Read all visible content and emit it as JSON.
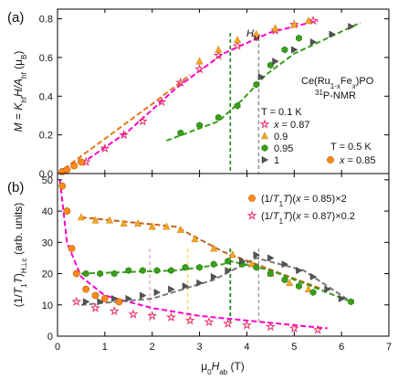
{
  "chart_data": [
    {
      "panel": "a",
      "type": "scatter",
      "panel_label": "(a)",
      "ylabel": "M = K_hf H/A_hf (μB)",
      "ylabel_parts": [
        "M",
        " = ",
        "K",
        "hf",
        "H/A",
        "hf",
        " (μ",
        "B",
        ")"
      ],
      "ylim": [
        0,
        0.85
      ],
      "yticks": [
        "0.0",
        "0.2",
        "0.4",
        "0.6",
        "0.8"
      ],
      "annotations": {
        "HM": [
          "H",
          "M"
        ],
        "compound_parts": [
          "Ce(Ru",
          "1-x",
          "Fe",
          "x",
          ")PO"
        ],
        "nmr_parts": [
          "31",
          "P-NMR"
        ],
        "T01": "T = 0.1 K",
        "T05": "T = 0.5 K"
      },
      "series": [
        {
          "name": "x = 0.87",
          "T": "0.1 K",
          "color": "#e8336b",
          "marker": "star-open",
          "x": [
            0.6,
            1.0,
            1.4,
            1.8,
            2.2,
            2.6,
            3.0,
            3.4,
            3.8,
            4.2,
            4.6,
            5.0,
            5.4
          ],
          "y": [
            0.06,
            0.13,
            0.2,
            0.27,
            0.37,
            0.47,
            0.54,
            0.61,
            0.66,
            0.71,
            0.74,
            0.77,
            0.79
          ]
        },
        {
          "name": "0.9",
          "T": "0.1 K",
          "color": "#f5a623",
          "marker": "triangle",
          "x": [
            3.0,
            3.4,
            3.8,
            4.2,
            4.6,
            5.0,
            5.3
          ],
          "y": [
            0.58,
            0.64,
            0.69,
            0.72,
            0.75,
            0.77,
            0.79
          ]
        },
        {
          "name": "0.95",
          "T": "0.1 K",
          "color": "#3a9e1a",
          "marker": "hexagon",
          "x": [
            2.6,
            3.0,
            3.4,
            3.8,
            4.2,
            4.5,
            4.8,
            5.1
          ],
          "y": [
            0.21,
            0.25,
            0.29,
            0.35,
            0.46,
            0.56,
            0.64,
            0.7
          ]
        },
        {
          "name": "1",
          "T": "0.1 K",
          "color": "#555555",
          "marker": "triangle-right",
          "x": [
            4.3,
            4.6,
            5.0,
            5.4,
            5.8,
            6.2
          ],
          "y": [
            0.5,
            0.58,
            0.64,
            0.68,
            0.72,
            0.76
          ]
        },
        {
          "name": "x = 0.85",
          "T": "0.5 K",
          "color": "#ff8a1a",
          "marker": "circle",
          "x": [
            0.1,
            0.2,
            0.35,
            0.5
          ],
          "y": [
            0.01,
            0.02,
            0.04,
            0.06
          ]
        }
      ],
      "fits": [
        {
          "color": "#ff00cc",
          "x": [
            0.5,
            1.5,
            2.5,
            3.5,
            4.5,
            5.5
          ],
          "y": [
            0.05,
            0.22,
            0.44,
            0.62,
            0.73,
            0.79
          ]
        },
        {
          "color": "#e8761a",
          "x": [
            0.0,
            1.0,
            2.0,
            2.8
          ],
          "y": [
            0.0,
            0.18,
            0.36,
            0.51
          ]
        },
        {
          "color": "#3a9e1a",
          "x": [
            2.3,
            3.4,
            3.9,
            4.4,
            5.0,
            6.4
          ],
          "y": [
            0.17,
            0.27,
            0.38,
            0.51,
            0.62,
            0.78
          ]
        }
      ]
    },
    {
      "panel": "b",
      "type": "scatter",
      "panel_label": "(b)",
      "xlabel": "μ0Hab (T)",
      "xlabel_parts": [
        "μ",
        "0",
        "H",
        "ab",
        " (T)"
      ],
      "ylabel": "(1/T1T)H⊥c (arb. units)",
      "ylabel_parts": [
        "(1/",
        "T",
        "1",
        "T",
        ")",
        "H⊥c",
        " (arb. units)"
      ],
      "xlim": [
        0,
        7
      ],
      "ylim": [
        0,
        52
      ],
      "xticks": [
        "0",
        "1",
        "2",
        "3",
        "4",
        "5",
        "6",
        "7"
      ],
      "yticks": [
        "0",
        "10",
        "20",
        "30",
        "40",
        "50"
      ],
      "legend": [
        {
          "parts": [
            "(1/",
            "T",
            "1",
            "T",
            ")(",
            "x",
            " = 0.85)×2"
          ]
        },
        {
          "parts": [
            "(1/",
            "T",
            "1",
            "T",
            ")(",
            "x",
            " = 0.87)×0.2"
          ]
        }
      ],
      "vertical_markers": [
        {
          "x": 1.95,
          "color": "#f2a0c8",
          "style": "dashed"
        },
        {
          "x": 2.75,
          "color": "#ffd34d",
          "style": "dashed"
        },
        {
          "x": 3.65,
          "color": "#1a8a1a",
          "style": "dashed"
        },
        {
          "x": 4.25,
          "color": "#999999",
          "style": "dashed"
        }
      ],
      "series": [
        {
          "name": "x = 0.87",
          "scale": "0.2",
          "color": "#e8336b",
          "marker": "star-open",
          "x": [
            0.4,
            0.8,
            1.2,
            1.6,
            2.0,
            2.4,
            2.8,
            3.2,
            3.6,
            4.0,
            4.5,
            5.0,
            5.5
          ],
          "y": [
            11,
            9,
            8,
            7,
            6.5,
            6,
            5,
            4.5,
            4,
            3.5,
            3,
            2.5,
            2
          ]
        },
        {
          "name": "0.9",
          "color": "#f5a623",
          "marker": "triangle",
          "x": [
            0.5,
            0.8,
            1.1,
            1.4,
            1.7,
            2.0,
            2.3,
            2.6,
            2.9,
            3.3,
            3.7,
            4.1,
            4.5,
            4.9,
            5.3
          ],
          "y": [
            38,
            37,
            37,
            36,
            36,
            35,
            35,
            34,
            31,
            28,
            26,
            23,
            20,
            17,
            15
          ]
        },
        {
          "name": "0.95",
          "color": "#3a9e1a",
          "marker": "hexagon",
          "x": [
            0.6,
            0.9,
            1.2,
            1.5,
            1.8,
            2.1,
            2.4,
            2.7,
            3.0,
            3.3,
            3.6,
            3.9,
            4.2,
            4.5,
            4.8,
            5.1,
            5.4,
            6.2
          ],
          "y": [
            20,
            20,
            20,
            21,
            21,
            21,
            21,
            22,
            22,
            23,
            24,
            23,
            22,
            20,
            18,
            16,
            14,
            11
          ]
        },
        {
          "name": "1",
          "color": "#555555",
          "marker": "triangle-right",
          "x": [
            0.6,
            0.9,
            1.2,
            1.5,
            1.8,
            2.1,
            2.4,
            2.7,
            3.0,
            3.3,
            3.6,
            3.9,
            4.2,
            4.5,
            4.8,
            5.1,
            5.4,
            5.7,
            6.0
          ],
          "y": [
            11,
            11,
            12,
            12,
            13,
            14,
            15,
            16,
            17,
            19,
            21,
            24,
            26,
            25,
            23,
            21,
            19,
            15,
            12
          ]
        },
        {
          "name": "x = 0.85",
          "scale": "2",
          "color": "#ff8a1a",
          "marker": "circle",
          "x": [
            0.1,
            0.2,
            0.3,
            0.4,
            0.6,
            0.8,
            1.0,
            1.3
          ],
          "y": [
            48,
            40,
            28,
            20,
            15,
            13,
            12,
            11
          ]
        }
      ],
      "fits": [
        {
          "color": "#ff00cc",
          "x": [
            0.05,
            0.2,
            0.5,
            1.0,
            2.0,
            3.0,
            4.0,
            5.0,
            5.7
          ],
          "y": [
            50,
            30,
            19,
            13,
            9,
            6.5,
            5,
            3.5,
            2.5
          ]
        },
        {
          "color": "#c8601a",
          "x": [
            0.5,
            2.5,
            3.5,
            5.6
          ],
          "y": [
            38,
            35,
            27,
            15
          ]
        },
        {
          "color": "#3a9e1a",
          "x": [
            0.5,
            2.5,
            3.5,
            3.65,
            4.5,
            6.2
          ],
          "y": [
            20,
            21,
            23,
            24,
            21,
            11
          ]
        },
        {
          "color": "#777777",
          "x": [
            0.5,
            2.0,
            3.3,
            4.2,
            5.2,
            6.2
          ],
          "y": [
            10,
            12,
            18,
            25,
            21,
            11
          ]
        }
      ]
    }
  ]
}
